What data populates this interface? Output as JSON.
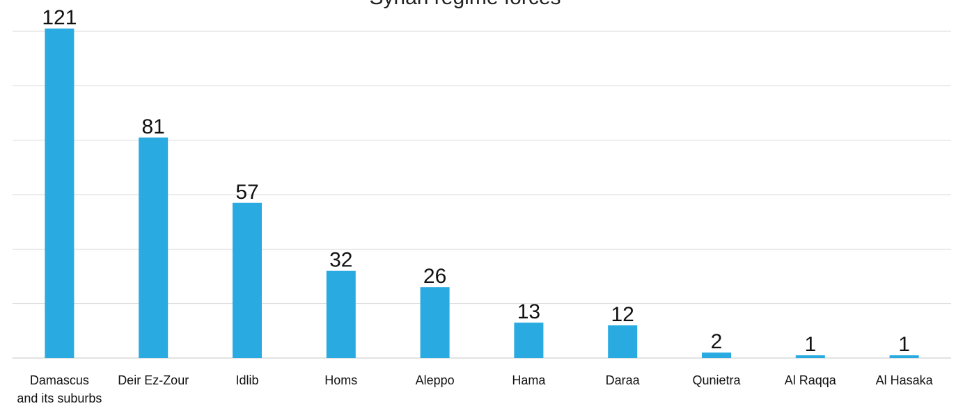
{
  "chart_data": {
    "type": "bar",
    "title": "Syrian regime forces",
    "categories": [
      "Damascus and its suburbs",
      "Deir Ez-Zour",
      "Idlib",
      "Homs",
      "Aleppo",
      "Hama",
      "Daraa",
      "Qunietra",
      "Al Raqqa",
      "Al Hasaka"
    ],
    "values": [
      121,
      81,
      57,
      32,
      26,
      13,
      12,
      2,
      1,
      1
    ],
    "ylim": [
      0,
      120
    ],
    "grid": true,
    "bar_color": "#29abe2",
    "gridline_color": "#d9d9d9"
  }
}
